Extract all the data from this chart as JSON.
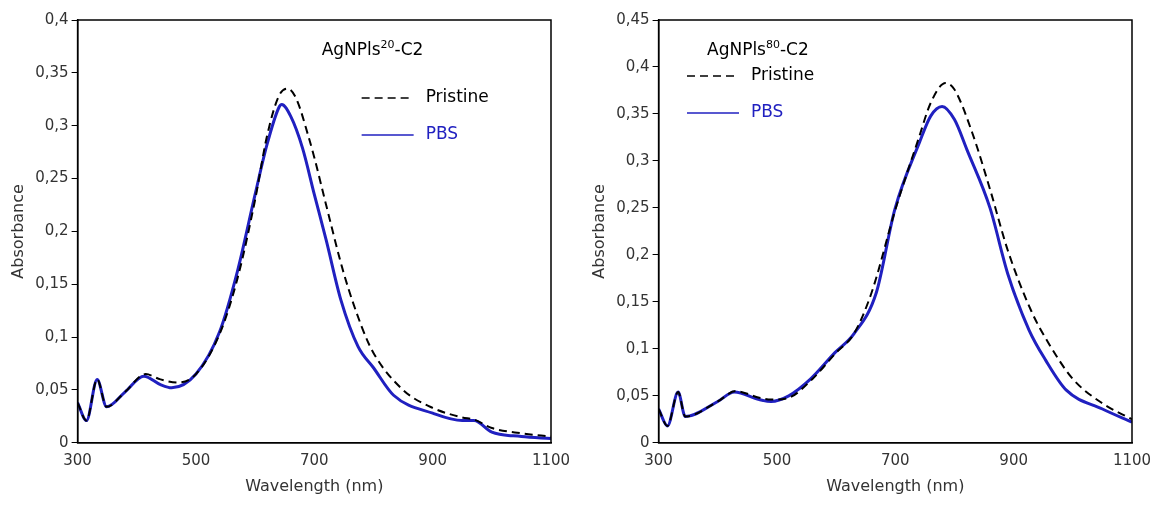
{
  "chart_data": [
    {
      "type": "line",
      "title": "AgNPls$^{20}$-C2",
      "xlabel": "Wavelength (nm)",
      "ylabel": "Absorbance",
      "legend": "top right",
      "xlim": [
        300,
        1100
      ],
      "xticks": [
        300,
        500,
        700,
        900,
        1100
      ],
      "ylim": [
        0,
        0.4
      ],
      "yticks": [
        {
          "value": 0,
          "label": "0"
        },
        {
          "value": 0.05,
          "label": "0,05"
        },
        {
          "value": 0.1,
          "label": "0,1"
        },
        {
          "value": 0.15,
          "label": "0,15"
        },
        {
          "value": 0.2,
          "label": "0,2"
        },
        {
          "value": 0.25,
          "label": "0,25"
        },
        {
          "value": 0.3,
          "label": "0,3"
        },
        {
          "value": 0.35,
          "label": "0,35"
        },
        {
          "value": 0.4,
          "label": "0,4"
        }
      ],
      "series": [
        {
          "name": "Pristine",
          "color": "#000000",
          "line_style": "dashed",
          "x": [
            300,
            315,
            333,
            349,
            380,
            415,
            440,
            470,
            500,
            540,
            570,
            600,
            620,
            640,
            655,
            670,
            690,
            700,
            720,
            750,
            780,
            800,
            850,
            900,
            950,
            970,
            1000,
            1050,
            1100
          ],
          "values": [
            0.038,
            0.021,
            0.06,
            0.034,
            0.048,
            0.065,
            0.06,
            0.057,
            0.065,
            0.103,
            0.155,
            0.23,
            0.29,
            0.328,
            0.335,
            0.325,
            0.29,
            0.27,
            0.225,
            0.16,
            0.11,
            0.085,
            0.05,
            0.033,
            0.024,
            0.022,
            0.014,
            0.009,
            0.006
          ]
        },
        {
          "name": "PBS",
          "color": "#2020c0",
          "line_style": "solid",
          "x": [
            300,
            315,
            333,
            349,
            380,
            412,
            440,
            459,
            500,
            540,
            570,
            600,
            620,
            640,
            645,
            660,
            680,
            700,
            720,
            745,
            774,
            800,
            834,
            900,
            950,
            970,
            1000,
            1050,
            1100
          ],
          "values": [
            0.038,
            0.021,
            0.06,
            0.034,
            0.048,
            0.063,
            0.055,
            0.052,
            0.065,
            0.105,
            0.162,
            0.235,
            0.282,
            0.317,
            0.32,
            0.309,
            0.279,
            0.235,
            0.192,
            0.135,
            0.091,
            0.071,
            0.045,
            0.028,
            0.021,
            0.021,
            0.01,
            0.006,
            0.004
          ]
        }
      ]
    },
    {
      "type": "line",
      "title": "AgNPls$^{80}$-C2",
      "xlabel": "Wavelength (nm)",
      "ylabel": "Absorbance",
      "legend": "top left",
      "xlim": [
        300,
        1100
      ],
      "xticks": [
        300,
        500,
        700,
        900,
        1100
      ],
      "ylim": [
        0,
        0.45
      ],
      "yticks": [
        {
          "value": 0,
          "label": "0"
        },
        {
          "value": 0.05,
          "label": "0,05"
        },
        {
          "value": 0.1,
          "label": "0,1"
        },
        {
          "value": 0.15,
          "label": "0,15"
        },
        {
          "value": 0.2,
          "label": "0,2"
        },
        {
          "value": 0.25,
          "label": "0,25"
        },
        {
          "value": 0.3,
          "label": "0,3"
        },
        {
          "value": 0.35,
          "label": "0,35"
        },
        {
          "value": 0.4,
          "label": "0,4"
        },
        {
          "value": 0.45,
          "label": "0,45"
        }
      ],
      "series": [
        {
          "name": "Pristine",
          "color": "#000000",
          "line_style": "dashed",
          "x": [
            300,
            315,
            333,
            345,
            400,
            430,
            470,
            490,
            520,
            560,
            600,
            630,
            660,
            700,
            740,
            760,
            785,
            800,
            830,
            860,
            890,
            930,
            960,
            1000,
            1050,
            1100
          ],
          "values": [
            0.036,
            0.018,
            0.054,
            0.028,
            0.044,
            0.055,
            0.048,
            0.046,
            0.048,
            0.068,
            0.096,
            0.116,
            0.16,
            0.248,
            0.325,
            0.362,
            0.383,
            0.376,
            0.33,
            0.27,
            0.205,
            0.14,
            0.105,
            0.068,
            0.042,
            0.025
          ]
        },
        {
          "name": "PBS",
          "color": "#2020c0",
          "line_style": "solid",
          "x": [
            300,
            315,
            333,
            345,
            400,
            428,
            470,
            490,
            520,
            557,
            598,
            630,
            668,
            699,
            741,
            760,
            779,
            800,
            821,
            860,
            890,
            926,
            954,
            989,
            1050,
            1100
          ],
          "values": [
            0.036,
            0.018,
            0.054,
            0.028,
            0.044,
            0.054,
            0.046,
            0.044,
            0.05,
            0.068,
            0.096,
            0.116,
            0.16,
            0.248,
            0.32,
            0.348,
            0.358,
            0.344,
            0.312,
            0.25,
            0.18,
            0.12,
            0.088,
            0.056,
            0.036,
            0.022
          ]
        }
      ]
    }
  ]
}
